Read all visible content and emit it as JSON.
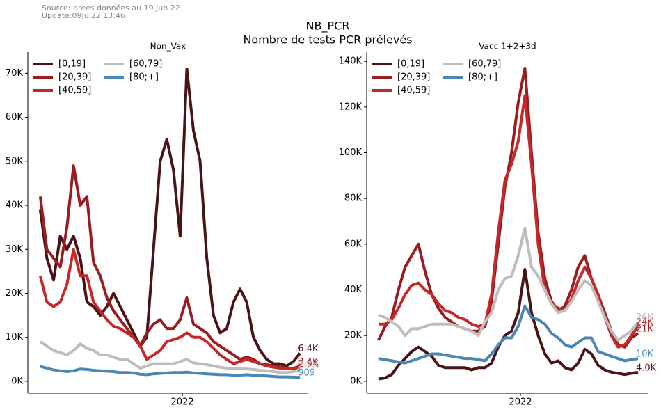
{
  "source": "Source: drees données au 19 Jun 22",
  "update": "Update:09Jul22 13:46",
  "suptitle": "NB_PCR",
  "suptitle2": "Nombre de tests PCR prélevés",
  "chart_data": [
    {
      "type": "line",
      "title": "Non_Vax",
      "x": [
        2021.36,
        2021.39,
        2021.42,
        2021.45,
        2021.48,
        2021.51,
        2021.54,
        2021.57,
        2021.6,
        2021.63,
        2021.66,
        2021.69,
        2021.72,
        2021.75,
        2021.78,
        2021.81,
        2021.84,
        2021.87,
        2021.9,
        2021.93,
        2021.96,
        2021.99,
        2022.02,
        2022.05,
        2022.08,
        2022.11,
        2022.14,
        2022.17,
        2022.2,
        2022.23,
        2022.26,
        2022.29,
        2022.32,
        2022.35,
        2022.38,
        2022.41,
        2022.44,
        2022.47,
        2022.5,
        2022.53
      ],
      "xlim": [
        2021.304,
        2022.567
      ],
      "xticks": [
        2022
      ],
      "ylim": [
        -2700,
        74800
      ],
      "yticks": [
        {
          "value": 0,
          "label": "0K"
        },
        {
          "value": 10000,
          "label": "10K"
        },
        {
          "value": 20000,
          "label": "20K"
        },
        {
          "value": 30000,
          "label": "30K"
        },
        {
          "value": 40000,
          "label": "40K"
        },
        {
          "value": 50000,
          "label": "50K"
        },
        {
          "value": 60000,
          "label": "60K"
        },
        {
          "value": 70000,
          "label": "70K"
        }
      ],
      "legend": "upper left",
      "series": [
        {
          "name": "[0,19]",
          "color": "#4a1416",
          "values": [
            39000,
            28000,
            23000,
            33000,
            30000,
            33000,
            28000,
            18000,
            17000,
            15000,
            17000,
            20000,
            17000,
            14000,
            11000,
            8000,
            10000,
            30000,
            50000,
            55000,
            48000,
            33000,
            71000,
            57000,
            50000,
            28000,
            15000,
            11000,
            12000,
            18000,
            21000,
            18000,
            10000,
            7000,
            5000,
            4000,
            4000,
            3500,
            4500,
            6400
          ],
          "value_labels": [
            null,
            null,
            null,
            null,
            null,
            null,
            null,
            null,
            null,
            null,
            null,
            null,
            null,
            null,
            null,
            null,
            null,
            null,
            null,
            null,
            null,
            null,
            null,
            null,
            null,
            null,
            null,
            null,
            null,
            null,
            null,
            null,
            null,
            null,
            null,
            null,
            null,
            null,
            null,
            "6.4K"
          ]
        },
        {
          "name": "[20,39]",
          "color": "#9b1c20",
          "values": [
            42000,
            30000,
            28000,
            26000,
            35000,
            49000,
            40000,
            42000,
            27000,
            24000,
            19000,
            16000,
            14000,
            12000,
            10000,
            8000,
            11000,
            13000,
            14000,
            12000,
            12000,
            14000,
            19000,
            13000,
            12000,
            11000,
            9000,
            8000,
            7000,
            6000,
            5000,
            5500,
            5000,
            4000,
            3800,
            3500,
            3300,
            3000,
            3000,
            3400
          ],
          "value_labels": [
            null,
            null,
            null,
            null,
            null,
            null,
            null,
            null,
            null,
            null,
            null,
            null,
            null,
            null,
            null,
            null,
            null,
            null,
            null,
            null,
            null,
            null,
            null,
            null,
            null,
            null,
            null,
            null,
            null,
            null,
            null,
            null,
            null,
            null,
            null,
            null,
            null,
            null,
            null,
            "3.4K"
          ]
        },
        {
          "name": "[40,59]",
          "color": "#c62828",
          "values": [
            24000,
            18000,
            17000,
            18000,
            22000,
            30000,
            24000,
            24000,
            18000,
            16000,
            14000,
            12500,
            12000,
            11000,
            10000,
            8000,
            5000,
            6000,
            7000,
            9000,
            9500,
            10000,
            11000,
            10000,
            10000,
            9000,
            7500,
            6000,
            5000,
            4000,
            4500,
            5000,
            4500,
            4000,
            3500,
            3200,
            3000,
            3000,
            2800,
            2900
          ],
          "value_labels": [
            null,
            null,
            null,
            null,
            null,
            null,
            null,
            null,
            null,
            null,
            null,
            null,
            null,
            null,
            null,
            null,
            null,
            null,
            null,
            null,
            null,
            null,
            null,
            null,
            null,
            null,
            null,
            null,
            null,
            null,
            null,
            null,
            null,
            null,
            null,
            null,
            null,
            null,
            null,
            "2.9K"
          ]
        },
        {
          "name": "[60,79]",
          "color": "#bdbdbd",
          "values": [
            9000,
            8000,
            7000,
            6500,
            6000,
            7000,
            8500,
            7500,
            7000,
            6000,
            6000,
            5500,
            5000,
            5000,
            4000,
            3000,
            3500,
            4000,
            4000,
            4000,
            4000,
            4500,
            5000,
            4200,
            4000,
            3800,
            3500,
            3200,
            3000,
            3000,
            3000,
            2800,
            2700,
            2500,
            2400,
            2200,
            2000,
            2000,
            2200,
            2700
          ],
          "value_labels": [
            null,
            null,
            null,
            null,
            null,
            null,
            null,
            null,
            null,
            null,
            null,
            null,
            null,
            null,
            null,
            null,
            null,
            null,
            null,
            null,
            null,
            null,
            null,
            null,
            null,
            null,
            null,
            null,
            null,
            null,
            null,
            null,
            null,
            null,
            null,
            null,
            null,
            null,
            null,
            "2.7K"
          ]
        },
        {
          "name": "[80;+]",
          "color": "#4a87b3",
          "values": [
            3400,
            3000,
            2600,
            2400,
            2200,
            2400,
            2800,
            2700,
            2500,
            2400,
            2300,
            2200,
            2000,
            2000,
            1900,
            1600,
            1500,
            1700,
            1800,
            1900,
            2000,
            2000,
            2100,
            1900,
            1800,
            1700,
            1600,
            1500,
            1500,
            1400,
            1400,
            1500,
            1400,
            1300,
            1200,
            1100,
            1000,
            1000,
            950,
            909
          ]
        }
      ]
    },
    {
      "type": "line",
      "title": "Vacc 1+2+3d",
      "x": [
        2021.36,
        2021.39,
        2021.42,
        2021.45,
        2021.48,
        2021.51,
        2021.54,
        2021.57,
        2021.6,
        2021.63,
        2021.66,
        2021.69,
        2021.72,
        2021.75,
        2021.78,
        2021.81,
        2021.84,
        2021.87,
        2021.9,
        2021.93,
        2021.96,
        2021.99,
        2022.02,
        2022.05,
        2022.08,
        2022.11,
        2022.14,
        2022.17,
        2022.2,
        2022.23,
        2022.26,
        2022.29,
        2022.32,
        2022.35,
        2022.38,
        2022.41,
        2022.44,
        2022.47,
        2022.5,
        2022.53
      ],
      "xlim": [
        2021.307,
        2022.577
      ],
      "xticks": [
        2022
      ],
      "ylim": [
        -5200,
        144000
      ],
      "yticks": [
        {
          "value": 0,
          "label": "0K"
        },
        {
          "value": 20000,
          "label": "20K"
        },
        {
          "value": 40000,
          "label": "40K"
        },
        {
          "value": 60000,
          "label": "60K"
        },
        {
          "value": 80000,
          "label": "80K"
        },
        {
          "value": 100000,
          "label": "100K"
        },
        {
          "value": 120000,
          "label": "120K"
        },
        {
          "value": 140000,
          "label": "140K"
        }
      ],
      "legend": "upper left",
      "series": [
        {
          "name": "[0,19]",
          "color": "#4a1416",
          "values": [
            1000,
            1500,
            3000,
            7000,
            10000,
            13000,
            15000,
            13000,
            11000,
            7000,
            6000,
            6000,
            6000,
            6000,
            5000,
            6000,
            6000,
            8000,
            15000,
            20000,
            22000,
            30000,
            49000,
            30000,
            20000,
            12000,
            8000,
            9000,
            6000,
            5000,
            8000,
            14000,
            12000,
            7000,
            5000,
            4000,
            3500,
            3000,
            3500,
            4000
          ],
          "value_labels": [
            null,
            null,
            null,
            null,
            null,
            null,
            null,
            null,
            null,
            null,
            null,
            null,
            null,
            null,
            null,
            null,
            null,
            null,
            null,
            null,
            null,
            null,
            null,
            null,
            null,
            null,
            null,
            null,
            null,
            null,
            null,
            null,
            null,
            null,
            null,
            null,
            null,
            null,
            null,
            "4.0K"
          ]
        },
        {
          "name": "[20,39]",
          "color": "#9b1c20",
          "values": [
            18000,
            24000,
            28000,
            40000,
            50000,
            55000,
            60000,
            48000,
            38000,
            32000,
            28000,
            26000,
            24000,
            23000,
            22000,
            22000,
            24000,
            35000,
            60000,
            85000,
            100000,
            122000,
            137000,
            100000,
            65000,
            45000,
            35000,
            31000,
            33000,
            40000,
            50000,
            55000,
            45000,
            38000,
            30000,
            22000,
            16000,
            15000,
            19000,
            21000
          ],
          "value_labels": [
            null,
            null,
            null,
            null,
            null,
            null,
            null,
            null,
            null,
            null,
            null,
            null,
            null,
            null,
            null,
            null,
            null,
            null,
            null,
            null,
            null,
            null,
            null,
            null,
            null,
            null,
            null,
            null,
            null,
            null,
            null,
            null,
            null,
            null,
            null,
            null,
            null,
            null,
            null,
            "21K"
          ]
        },
        {
          "name": "[40,59]",
          "color": "#c62828",
          "values": [
            25000,
            25000,
            27000,
            32000,
            38000,
            42000,
            43000,
            40000,
            38000,
            34000,
            31000,
            30000,
            28000,
            27000,
            25000,
            24000,
            25000,
            38000,
            65000,
            88000,
            95000,
            105000,
            125000,
            95000,
            60000,
            40000,
            34000,
            32000,
            31000,
            36000,
            44000,
            50000,
            45000,
            38000,
            28000,
            20000,
            15000,
            16000,
            20000,
            24000
          ],
          "value_labels": [
            null,
            null,
            null,
            null,
            null,
            null,
            null,
            null,
            null,
            null,
            null,
            null,
            null,
            null,
            null,
            null,
            null,
            null,
            null,
            null,
            null,
            null,
            null,
            null,
            null,
            null,
            null,
            null,
            null,
            null,
            null,
            null,
            null,
            null,
            null,
            null,
            null,
            null,
            null,
            "24K"
          ]
        },
        {
          "name": "[60,79]",
          "color": "#bdbdbd",
          "values": [
            29000,
            28000,
            26000,
            24000,
            20000,
            23000,
            23000,
            24000,
            25000,
            25000,
            25000,
            25000,
            24000,
            23000,
            22000,
            20000,
            26000,
            30000,
            40000,
            45000,
            46000,
            55000,
            67000,
            50000,
            46000,
            40000,
            34000,
            30000,
            31000,
            35000,
            40000,
            44000,
            42000,
            35000,
            28000,
            22000,
            18000,
            20000,
            22000,
            26000
          ],
          "value_labels": [
            null,
            null,
            null,
            null,
            null,
            null,
            null,
            null,
            null,
            null,
            null,
            null,
            null,
            null,
            null,
            null,
            null,
            null,
            null,
            null,
            null,
            null,
            null,
            null,
            null,
            null,
            null,
            null,
            null,
            null,
            null,
            null,
            null,
            null,
            null,
            null,
            null,
            null,
            null,
            "26K"
          ]
        },
        {
          "name": "[80;+]",
          "color": "#4a87b3",
          "values": [
            10000,
            9500,
            9000,
            8500,
            8000,
            9000,
            10000,
            11000,
            12000,
            12000,
            11500,
            11000,
            10500,
            10000,
            10000,
            9500,
            9000,
            12000,
            16000,
            19000,
            19000,
            24000,
            33000,
            28000,
            27000,
            25000,
            21000,
            19000,
            16000,
            15000,
            17000,
            19000,
            19000,
            13000,
            12000,
            11000,
            10000,
            9000,
            9500,
            10000
          ],
          "value_labels": [
            null,
            null,
            null,
            null,
            null,
            null,
            null,
            null,
            null,
            null,
            null,
            null,
            null,
            null,
            null,
            null,
            null,
            null,
            null,
            null,
            null,
            null,
            null,
            null,
            null,
            null,
            null,
            null,
            null,
            null,
            null,
            null,
            null,
            null,
            null,
            null,
            null,
            null,
            null,
            "10K"
          ]
        }
      ]
    }
  ]
}
